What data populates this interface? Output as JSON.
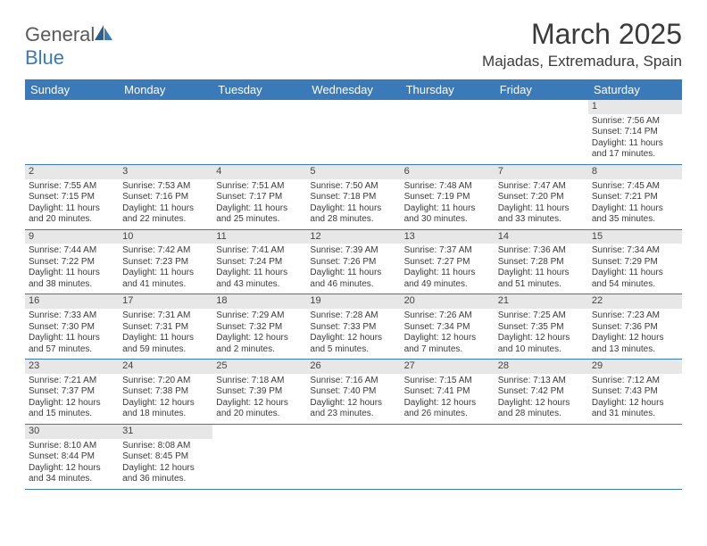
{
  "logo": {
    "text1": "General",
    "text2": "Blue"
  },
  "title": "March 2025",
  "location": "Majadas, Extremadura, Spain",
  "colors": {
    "header_bg": "#3a7ab8",
    "header_text": "#ffffff",
    "daynum_bg": "#e7e7e7",
    "border": "#3a7ab8",
    "body_text": "#3a3a3a"
  },
  "weekdays": [
    "Sunday",
    "Monday",
    "Tuesday",
    "Wednesday",
    "Thursday",
    "Friday",
    "Saturday"
  ],
  "weeks": [
    [
      null,
      null,
      null,
      null,
      null,
      null,
      {
        "n": "1",
        "sr": "Sunrise: 7:56 AM",
        "ss": "Sunset: 7:14 PM",
        "d1": "Daylight: 11 hours",
        "d2": "and 17 minutes."
      }
    ],
    [
      {
        "n": "2",
        "sr": "Sunrise: 7:55 AM",
        "ss": "Sunset: 7:15 PM",
        "d1": "Daylight: 11 hours",
        "d2": "and 20 minutes."
      },
      {
        "n": "3",
        "sr": "Sunrise: 7:53 AM",
        "ss": "Sunset: 7:16 PM",
        "d1": "Daylight: 11 hours",
        "d2": "and 22 minutes."
      },
      {
        "n": "4",
        "sr": "Sunrise: 7:51 AM",
        "ss": "Sunset: 7:17 PM",
        "d1": "Daylight: 11 hours",
        "d2": "and 25 minutes."
      },
      {
        "n": "5",
        "sr": "Sunrise: 7:50 AM",
        "ss": "Sunset: 7:18 PM",
        "d1": "Daylight: 11 hours",
        "d2": "and 28 minutes."
      },
      {
        "n": "6",
        "sr": "Sunrise: 7:48 AM",
        "ss": "Sunset: 7:19 PM",
        "d1": "Daylight: 11 hours",
        "d2": "and 30 minutes."
      },
      {
        "n": "7",
        "sr": "Sunrise: 7:47 AM",
        "ss": "Sunset: 7:20 PM",
        "d1": "Daylight: 11 hours",
        "d2": "and 33 minutes."
      },
      {
        "n": "8",
        "sr": "Sunrise: 7:45 AM",
        "ss": "Sunset: 7:21 PM",
        "d1": "Daylight: 11 hours",
        "d2": "and 35 minutes."
      }
    ],
    [
      {
        "n": "9",
        "sr": "Sunrise: 7:44 AM",
        "ss": "Sunset: 7:22 PM",
        "d1": "Daylight: 11 hours",
        "d2": "and 38 minutes."
      },
      {
        "n": "10",
        "sr": "Sunrise: 7:42 AM",
        "ss": "Sunset: 7:23 PM",
        "d1": "Daylight: 11 hours",
        "d2": "and 41 minutes."
      },
      {
        "n": "11",
        "sr": "Sunrise: 7:41 AM",
        "ss": "Sunset: 7:24 PM",
        "d1": "Daylight: 11 hours",
        "d2": "and 43 minutes."
      },
      {
        "n": "12",
        "sr": "Sunrise: 7:39 AM",
        "ss": "Sunset: 7:26 PM",
        "d1": "Daylight: 11 hours",
        "d2": "and 46 minutes."
      },
      {
        "n": "13",
        "sr": "Sunrise: 7:37 AM",
        "ss": "Sunset: 7:27 PM",
        "d1": "Daylight: 11 hours",
        "d2": "and 49 minutes."
      },
      {
        "n": "14",
        "sr": "Sunrise: 7:36 AM",
        "ss": "Sunset: 7:28 PM",
        "d1": "Daylight: 11 hours",
        "d2": "and 51 minutes."
      },
      {
        "n": "15",
        "sr": "Sunrise: 7:34 AM",
        "ss": "Sunset: 7:29 PM",
        "d1": "Daylight: 11 hours",
        "d2": "and 54 minutes."
      }
    ],
    [
      {
        "n": "16",
        "sr": "Sunrise: 7:33 AM",
        "ss": "Sunset: 7:30 PM",
        "d1": "Daylight: 11 hours",
        "d2": "and 57 minutes."
      },
      {
        "n": "17",
        "sr": "Sunrise: 7:31 AM",
        "ss": "Sunset: 7:31 PM",
        "d1": "Daylight: 11 hours",
        "d2": "and 59 minutes."
      },
      {
        "n": "18",
        "sr": "Sunrise: 7:29 AM",
        "ss": "Sunset: 7:32 PM",
        "d1": "Daylight: 12 hours",
        "d2": "and 2 minutes."
      },
      {
        "n": "19",
        "sr": "Sunrise: 7:28 AM",
        "ss": "Sunset: 7:33 PM",
        "d1": "Daylight: 12 hours",
        "d2": "and 5 minutes."
      },
      {
        "n": "20",
        "sr": "Sunrise: 7:26 AM",
        "ss": "Sunset: 7:34 PM",
        "d1": "Daylight: 12 hours",
        "d2": "and 7 minutes."
      },
      {
        "n": "21",
        "sr": "Sunrise: 7:25 AM",
        "ss": "Sunset: 7:35 PM",
        "d1": "Daylight: 12 hours",
        "d2": "and 10 minutes."
      },
      {
        "n": "22",
        "sr": "Sunrise: 7:23 AM",
        "ss": "Sunset: 7:36 PM",
        "d1": "Daylight: 12 hours",
        "d2": "and 13 minutes."
      }
    ],
    [
      {
        "n": "23",
        "sr": "Sunrise: 7:21 AM",
        "ss": "Sunset: 7:37 PM",
        "d1": "Daylight: 12 hours",
        "d2": "and 15 minutes."
      },
      {
        "n": "24",
        "sr": "Sunrise: 7:20 AM",
        "ss": "Sunset: 7:38 PM",
        "d1": "Daylight: 12 hours",
        "d2": "and 18 minutes."
      },
      {
        "n": "25",
        "sr": "Sunrise: 7:18 AM",
        "ss": "Sunset: 7:39 PM",
        "d1": "Daylight: 12 hours",
        "d2": "and 20 minutes."
      },
      {
        "n": "26",
        "sr": "Sunrise: 7:16 AM",
        "ss": "Sunset: 7:40 PM",
        "d1": "Daylight: 12 hours",
        "d2": "and 23 minutes."
      },
      {
        "n": "27",
        "sr": "Sunrise: 7:15 AM",
        "ss": "Sunset: 7:41 PM",
        "d1": "Daylight: 12 hours",
        "d2": "and 26 minutes."
      },
      {
        "n": "28",
        "sr": "Sunrise: 7:13 AM",
        "ss": "Sunset: 7:42 PM",
        "d1": "Daylight: 12 hours",
        "d2": "and 28 minutes."
      },
      {
        "n": "29",
        "sr": "Sunrise: 7:12 AM",
        "ss": "Sunset: 7:43 PM",
        "d1": "Daylight: 12 hours",
        "d2": "and 31 minutes."
      }
    ],
    [
      {
        "n": "30",
        "sr": "Sunrise: 8:10 AM",
        "ss": "Sunset: 8:44 PM",
        "d1": "Daylight: 12 hours",
        "d2": "and 34 minutes."
      },
      {
        "n": "31",
        "sr": "Sunrise: 8:08 AM",
        "ss": "Sunset: 8:45 PM",
        "d1": "Daylight: 12 hours",
        "d2": "and 36 minutes."
      },
      null,
      null,
      null,
      null,
      null
    ]
  ]
}
